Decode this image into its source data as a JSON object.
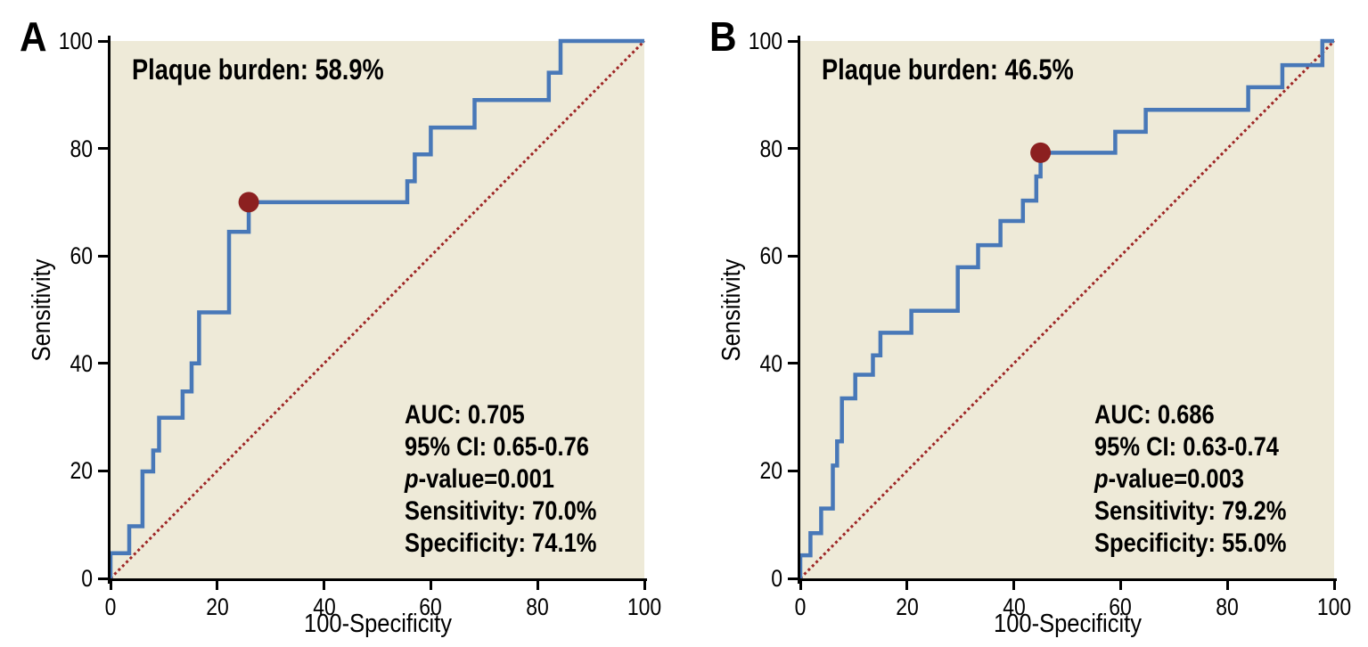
{
  "colors": {
    "plot_background": "#EEEAD8",
    "roc_curve_blue": "#4878B8",
    "operating_point_red": "#8C2020",
    "reference_line_red": "#9E2626",
    "axis_black": "#000000"
  },
  "chart_data": [
    {
      "type": "line",
      "subtype": "roc-step-curve",
      "panel_label": "A",
      "title": "Plaque burden: 58.9%",
      "xlabel": "100-Specificity",
      "ylabel": "Sensitivity",
      "xlim": [
        0,
        100
      ],
      "ylim": [
        0,
        100
      ],
      "xticks": [
        0,
        20,
        40,
        60,
        80,
        100
      ],
      "yticks": [
        0,
        20,
        40,
        60,
        80,
        100
      ],
      "grid": false,
      "legend": "none",
      "reference_diagonal": [
        [
          0,
          0
        ],
        [
          100,
          100
        ]
      ],
      "curve": [
        [
          0,
          0
        ],
        [
          0,
          4.7
        ],
        [
          3.5,
          4.7
        ],
        [
          3.5,
          9.7
        ],
        [
          6,
          9.7
        ],
        [
          6,
          19.9
        ],
        [
          8,
          19.9
        ],
        [
          8,
          23.8
        ],
        [
          9.1,
          23.8
        ],
        [
          9.1,
          29.9
        ],
        [
          13.5,
          29.9
        ],
        [
          13.5,
          34.8
        ],
        [
          15.2,
          34.8
        ],
        [
          15.2,
          40
        ],
        [
          16.6,
          40
        ],
        [
          16.6,
          49.5
        ],
        [
          22.2,
          49.5
        ],
        [
          22.2,
          64.5
        ],
        [
          25.9,
          64.5
        ],
        [
          25.9,
          70
        ],
        [
          55.6,
          70
        ],
        [
          55.6,
          73.9
        ],
        [
          57,
          73.9
        ],
        [
          57,
          78.9
        ],
        [
          60,
          78.9
        ],
        [
          60,
          83.9
        ],
        [
          68.2,
          83.9
        ],
        [
          68.2,
          89
        ],
        [
          82.1,
          89
        ],
        [
          82.1,
          94.1
        ],
        [
          84.3,
          94.1
        ],
        [
          84.3,
          100
        ],
        [
          100,
          100
        ]
      ],
      "operating_point": {
        "x": 25.9,
        "y": 70.0
      },
      "stats": [
        {
          "italic": "",
          "text": "AUC: 0.705"
        },
        {
          "italic": "",
          "text": "95% CI: 0.65-0.76"
        },
        {
          "italic": "p",
          "text": "-value=0.001"
        },
        {
          "italic": "",
          "text": "Sensitivity: 70.0%"
        },
        {
          "italic": "",
          "text": "Specificity: 74.1%"
        }
      ]
    },
    {
      "type": "line",
      "subtype": "roc-step-curve",
      "panel_label": "B",
      "title": "Plaque burden: 46.5%",
      "xlabel": "100-Specificity",
      "ylabel": "Sensitivity",
      "xlim": [
        0,
        100
      ],
      "ylim": [
        0,
        100
      ],
      "xticks": [
        0,
        20,
        40,
        60,
        80,
        100
      ],
      "yticks": [
        0,
        20,
        40,
        60,
        80,
        100
      ],
      "grid": false,
      "legend": "none",
      "reference_diagonal": [
        [
          0,
          0
        ],
        [
          100,
          100
        ]
      ],
      "curve": [
        [
          0,
          0
        ],
        [
          0,
          4.3
        ],
        [
          1.9,
          4.3
        ],
        [
          1.9,
          8.4
        ],
        [
          3.9,
          8.4
        ],
        [
          3.9,
          13
        ],
        [
          6.1,
          13
        ],
        [
          6.1,
          21
        ],
        [
          6.9,
          21
        ],
        [
          6.9,
          25.5
        ],
        [
          7.8,
          25.5
        ],
        [
          7.8,
          33.5
        ],
        [
          10.3,
          33.5
        ],
        [
          10.3,
          37.9
        ],
        [
          13.6,
          37.9
        ],
        [
          13.6,
          41.5
        ],
        [
          15,
          41.5
        ],
        [
          15,
          45.7
        ],
        [
          20.8,
          45.7
        ],
        [
          20.8,
          49.8
        ],
        [
          29.5,
          49.8
        ],
        [
          29.5,
          57.9
        ],
        [
          33.3,
          57.9
        ],
        [
          33.3,
          62
        ],
        [
          37.5,
          62
        ],
        [
          37.5,
          66.5
        ],
        [
          41.7,
          66.5
        ],
        [
          41.7,
          70.3
        ],
        [
          44.2,
          70.3
        ],
        [
          44.2,
          74.8
        ],
        [
          45,
          74.8
        ],
        [
          45,
          79.2
        ],
        [
          59,
          79.2
        ],
        [
          59,
          83.1
        ],
        [
          64.7,
          83.1
        ],
        [
          64.7,
          87.2
        ],
        [
          83.9,
          87.2
        ],
        [
          83.9,
          91.4
        ],
        [
          90.3,
          91.4
        ],
        [
          90.3,
          95.5
        ],
        [
          97.8,
          95.5
        ],
        [
          97.8,
          100
        ],
        [
          100,
          100
        ]
      ],
      "operating_point": {
        "x": 45.0,
        "y": 79.2
      },
      "stats": [
        {
          "italic": "",
          "text": "AUC: 0.686"
        },
        {
          "italic": "",
          "text": "95% CI: 0.63-0.74"
        },
        {
          "italic": "p",
          "text": "-value=0.003"
        },
        {
          "italic": "",
          "text": "Sensitivity: 79.2%"
        },
        {
          "italic": "",
          "text": "Specificity: 55.0%"
        }
      ]
    }
  ]
}
